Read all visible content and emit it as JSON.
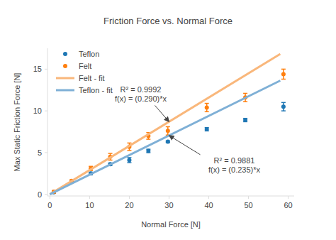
{
  "chart_data": {
    "type": "scatter",
    "title": "Friction Force vs. Normal Force",
    "x_label": "Normal Force [N]",
    "y_label": "Max Static Friction Force [N]",
    "xlim": [
      -0.6,
      61.5
    ],
    "ylim": [
      -0.2,
      17.5
    ],
    "xticks": [
      0,
      10,
      20,
      30,
      40,
      50,
      60
    ],
    "yticks": [
      0,
      5,
      10,
      15
    ],
    "grid": false,
    "legend": "top-left",
    "series": [
      {
        "name": "Teflon",
        "type": "scatter",
        "marker": "circle",
        "color": "#1f77b4",
        "x": [
          1,
          5.5,
          10.3,
          15.2,
          20,
          24.8,
          29.7,
          39.5,
          49.2,
          58.8
        ],
        "values": [
          0.25,
          1.5,
          2.5,
          3.6,
          4.1,
          5.2,
          6.3,
          7.8,
          8.9,
          10.5
        ],
        "errors": [
          0.1,
          0.1,
          0.15,
          0.15,
          0.3,
          0.2,
          0.1,
          0.2,
          0.2,
          0.5
        ]
      },
      {
        "name": "Felt",
        "type": "scatter",
        "marker": "circle",
        "color": "#ff7f0e",
        "x": [
          1,
          5.5,
          10.3,
          15.2,
          20,
          24.8,
          29.7,
          39.5,
          49.2,
          58.8
        ],
        "values": [
          0.3,
          1.6,
          3.1,
          4.5,
          5.7,
          7.0,
          7.6,
          10.4,
          11.6,
          14.4
        ],
        "errors": [
          0.15,
          0.15,
          0.25,
          0.4,
          0.45,
          0.4,
          0.5,
          0.5,
          0.5,
          0.6
        ]
      },
      {
        "name": "Felt - fit",
        "type": "line",
        "line_style": "solid",
        "color": "#f9b77b",
        "x": [
          0,
          58
        ],
        "values": [
          0,
          16.82
        ]
      },
      {
        "name": "Teflon - fit",
        "type": "line",
        "line_style": "solid",
        "color": "#7fb0d6",
        "x": [
          0,
          58
        ],
        "values": [
          0,
          13.63
        ]
      }
    ],
    "annotations": [
      {
        "text": [
          "R² = 0.9992",
          "f(x) = (0.290)*x"
        ],
        "x": 30,
        "y": 8.7
      },
      {
        "text": [
          "R² = 0.9881",
          "f(x) = (0.235)*x"
        ],
        "x": 30,
        "y": 7.05
      }
    ]
  }
}
